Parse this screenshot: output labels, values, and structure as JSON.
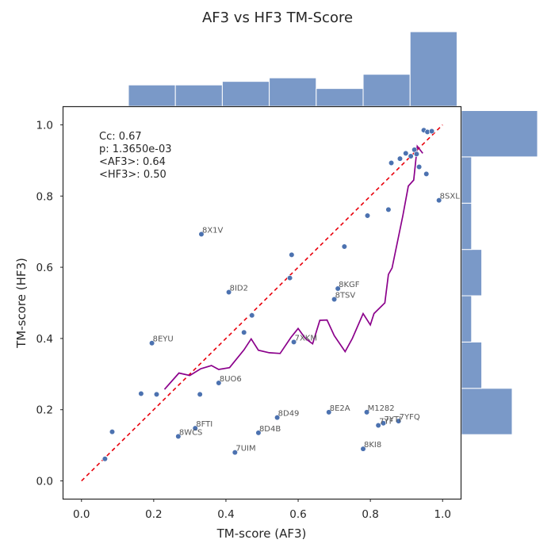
{
  "chart_data": {
    "type": "scatter",
    "title": "AF3 vs HF3 TM-Score",
    "xlabel": "TM-score (AF3)",
    "ylabel": "TM-score (HF3)",
    "xlim": [
      -0.05,
      1.05
    ],
    "ylim": [
      -0.05,
      1.05
    ],
    "xticks": [
      "0.0",
      "0.2",
      "0.4",
      "0.6",
      "0.8",
      "1.0"
    ],
    "yticks": [
      "0.0",
      "0.2",
      "0.4",
      "0.6",
      "0.8",
      "1.0"
    ],
    "grid": false,
    "stats_text": [
      "Cc: 0.67",
      "p: 1.3650e-03",
      "<AF3>: 0.64",
      "<HF3>: 0.50"
    ],
    "colors": {
      "points": "#4c72b0",
      "hist": "#7a99c8",
      "diagonal": "#e8000b",
      "trend": "#8b008b",
      "frame": "#262626"
    },
    "points": [
      {
        "x": 0.065,
        "y": 0.062,
        "label": ""
      },
      {
        "x": 0.085,
        "y": 0.138,
        "label": ""
      },
      {
        "x": 0.165,
        "y": 0.245,
        "label": ""
      },
      {
        "x": 0.195,
        "y": 0.387,
        "label": "8EYU"
      },
      {
        "x": 0.208,
        "y": 0.243,
        "label": ""
      },
      {
        "x": 0.268,
        "y": 0.125,
        "label": "8WCS"
      },
      {
        "x": 0.315,
        "y": 0.148,
        "label": "8FTI"
      },
      {
        "x": 0.328,
        "y": 0.243,
        "label": ""
      },
      {
        "x": 0.332,
        "y": 0.693,
        "label": "8X1V"
      },
      {
        "x": 0.38,
        "y": 0.275,
        "label": "8UO6"
      },
      {
        "x": 0.408,
        "y": 0.53,
        "label": "8ID2"
      },
      {
        "x": 0.425,
        "y": 0.08,
        "label": "7UIM"
      },
      {
        "x": 0.45,
        "y": 0.417,
        "label": ""
      },
      {
        "x": 0.472,
        "y": 0.465,
        "label": ""
      },
      {
        "x": 0.49,
        "y": 0.135,
        "label": "8D4B"
      },
      {
        "x": 0.542,
        "y": 0.178,
        "label": "8D49"
      },
      {
        "x": 0.577,
        "y": 0.57,
        "label": ""
      },
      {
        "x": 0.582,
        "y": 0.635,
        "label": ""
      },
      {
        "x": 0.588,
        "y": 0.39,
        "label": "7XKM"
      },
      {
        "x": 0.685,
        "y": 0.193,
        "label": "8E2A"
      },
      {
        "x": 0.7,
        "y": 0.51,
        "label": "8TSV"
      },
      {
        "x": 0.71,
        "y": 0.54,
        "label": "8KGF"
      },
      {
        "x": 0.728,
        "y": 0.658,
        "label": ""
      },
      {
        "x": 0.78,
        "y": 0.09,
        "label": "8KI8"
      },
      {
        "x": 0.79,
        "y": 0.193,
        "label": "M1282"
      },
      {
        "x": 0.792,
        "y": 0.745,
        "label": ""
      },
      {
        "x": 0.822,
        "y": 0.156,
        "label": "7YF"
      },
      {
        "x": 0.836,
        "y": 0.162,
        "label": "7YTI"
      },
      {
        "x": 0.85,
        "y": 0.762,
        "label": ""
      },
      {
        "x": 0.858,
        "y": 0.893,
        "label": ""
      },
      {
        "x": 0.878,
        "y": 0.168,
        "label": "7YFQ"
      },
      {
        "x": 0.882,
        "y": 0.905,
        "label": ""
      },
      {
        "x": 0.898,
        "y": 0.92,
        "label": ""
      },
      {
        "x": 0.912,
        "y": 0.912,
        "label": ""
      },
      {
        "x": 0.922,
        "y": 0.93,
        "label": ""
      },
      {
        "x": 0.928,
        "y": 0.918,
        "label": ""
      },
      {
        "x": 0.935,
        "y": 0.882,
        "label": ""
      },
      {
        "x": 0.948,
        "y": 0.985,
        "label": ""
      },
      {
        "x": 0.955,
        "y": 0.862,
        "label": ""
      },
      {
        "x": 0.958,
        "y": 0.98,
        "label": ""
      },
      {
        "x": 0.97,
        "y": 0.982,
        "label": ""
      },
      {
        "x": 0.99,
        "y": 0.788,
        "label": "8SXL"
      }
    ],
    "trend_line": [
      [
        0.23,
        0.257
      ],
      [
        0.27,
        0.303
      ],
      [
        0.3,
        0.296
      ],
      [
        0.33,
        0.315
      ],
      [
        0.36,
        0.324
      ],
      [
        0.38,
        0.313
      ],
      [
        0.41,
        0.318
      ],
      [
        0.45,
        0.368
      ],
      [
        0.47,
        0.399
      ],
      [
        0.49,
        0.367
      ],
      [
        0.52,
        0.36
      ],
      [
        0.55,
        0.358
      ],
      [
        0.58,
        0.403
      ],
      [
        0.6,
        0.428
      ],
      [
        0.62,
        0.4
      ],
      [
        0.64,
        0.385
      ],
      [
        0.66,
        0.451
      ],
      [
        0.68,
        0.452
      ],
      [
        0.7,
        0.408
      ],
      [
        0.73,
        0.363
      ],
      [
        0.75,
        0.4
      ],
      [
        0.78,
        0.47
      ],
      [
        0.8,
        0.438
      ],
      [
        0.81,
        0.47
      ],
      [
        0.84,
        0.5
      ],
      [
        0.85,
        0.58
      ],
      [
        0.86,
        0.598
      ],
      [
        0.89,
        0.745
      ],
      [
        0.905,
        0.828
      ],
      [
        0.92,
        0.845
      ],
      [
        0.93,
        0.94
      ],
      [
        0.945,
        0.92
      ]
    ],
    "x_hist": {
      "bin_edges": [
        0.0,
        0.13,
        0.26,
        0.39,
        0.52,
        0.65,
        0.78,
        0.91,
        1.04
      ],
      "counts": [
        0,
        6,
        6,
        7,
        8,
        5,
        9,
        21
      ]
    },
    "y_hist": {
      "bin_edges": [
        0.0,
        0.13,
        0.26,
        0.39,
        0.52,
        0.65,
        0.78,
        0.91,
        1.04
      ],
      "counts": [
        0,
        10,
        4,
        2,
        4,
        2,
        2,
        15
      ]
    }
  }
}
